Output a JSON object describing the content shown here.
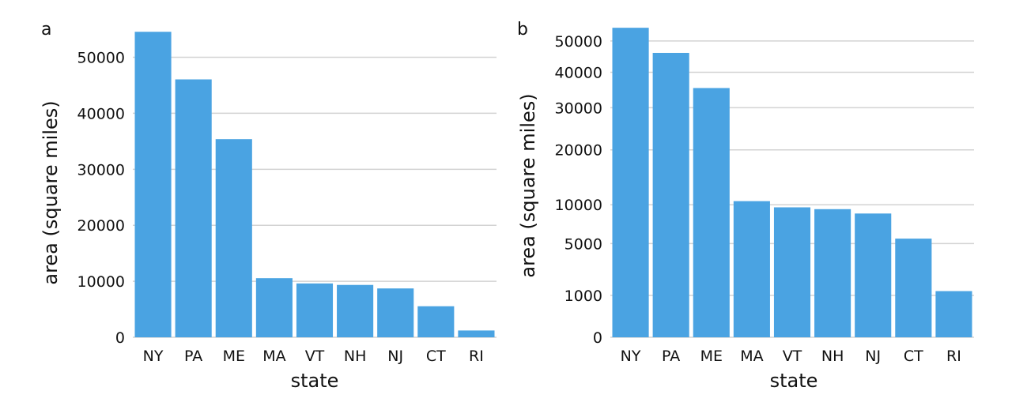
{
  "colors": {
    "bar": "#4aa3e2",
    "grid": "#d3d3d3",
    "text": "#111111",
    "background": "#ffffff"
  },
  "chart_data": [
    {
      "panel": "a",
      "type": "bar",
      "scale": "linear",
      "title": "",
      "xlabel": "state",
      "ylabel": "area (square miles)",
      "categories": [
        "NY",
        "PA",
        "ME",
        "MA",
        "VT",
        "NH",
        "NJ",
        "CT",
        "RI"
      ],
      "values": [
        54555,
        46054,
        35380,
        10554,
        9616,
        9349,
        8723,
        5543,
        1214
      ],
      "yticks": [
        0,
        10000,
        20000,
        30000,
        40000,
        50000
      ],
      "ylim": [
        0,
        56000
      ],
      "grid": true
    },
    {
      "panel": "b",
      "type": "bar",
      "scale": "sqrt",
      "title": "",
      "xlabel": "state",
      "ylabel": "area (square miles)",
      "categories": [
        "NY",
        "PA",
        "ME",
        "MA",
        "VT",
        "NH",
        "NJ",
        "CT",
        "RI"
      ],
      "values": [
        54555,
        46054,
        35380,
        10554,
        9616,
        9349,
        8723,
        5543,
        1214
      ],
      "yticks": [
        0,
        1000,
        5000,
        10000,
        20000,
        30000,
        40000,
        50000
      ],
      "ylim": [
        0,
        56000
      ],
      "grid": true
    }
  ]
}
